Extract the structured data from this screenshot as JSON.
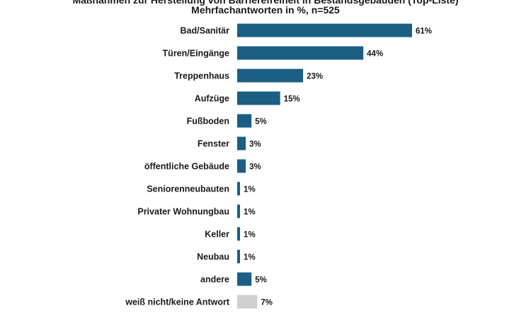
{
  "header": {
    "title": "Maßnahmen zur Herstellung von Barrierefreiheit in Bestandsgebäuden (Top-Liste)",
    "subtitle": "Mehrfachantworten  in %, n=525"
  },
  "colors": {
    "bar": "#1b5f82",
    "bar_muted": "#cfcfcf",
    "text": "#1a1a1a"
  },
  "chart_data": {
    "type": "bar",
    "orientation": "horizontal",
    "title": "Maßnahmen zur Herstellung von Barrierefreiheit in Bestandsgebäuden (Top-Liste)",
    "subtitle": "Mehrfachantworten  in %, n=525",
    "unit": "%",
    "xlim": [
      0,
      61
    ],
    "grid": false,
    "legend": "none",
    "categories": [
      "Bad/Sanitär",
      "Türen/Eingänge",
      "Treppenhaus",
      "Aufzüge",
      "Fußboden",
      "Fenster",
      "öffentliche Gebäude",
      "Seniorenneubauten",
      "Privater Wohnungbau",
      "Keller",
      "Neubau",
      "andere",
      "weiß nicht/keine Antwort"
    ],
    "values": [
      61,
      44,
      23,
      15,
      5,
      3,
      3,
      1,
      1,
      1,
      1,
      5,
      7
    ],
    "value_labels": [
      "61%",
      "44%",
      "23%",
      "15%",
      "5%",
      "3%",
      "3%",
      "1%",
      "1%",
      "1%",
      "1%",
      "5%",
      "7%"
    ],
    "muted_categories": [
      "weiß nicht/keine Antwort"
    ]
  }
}
